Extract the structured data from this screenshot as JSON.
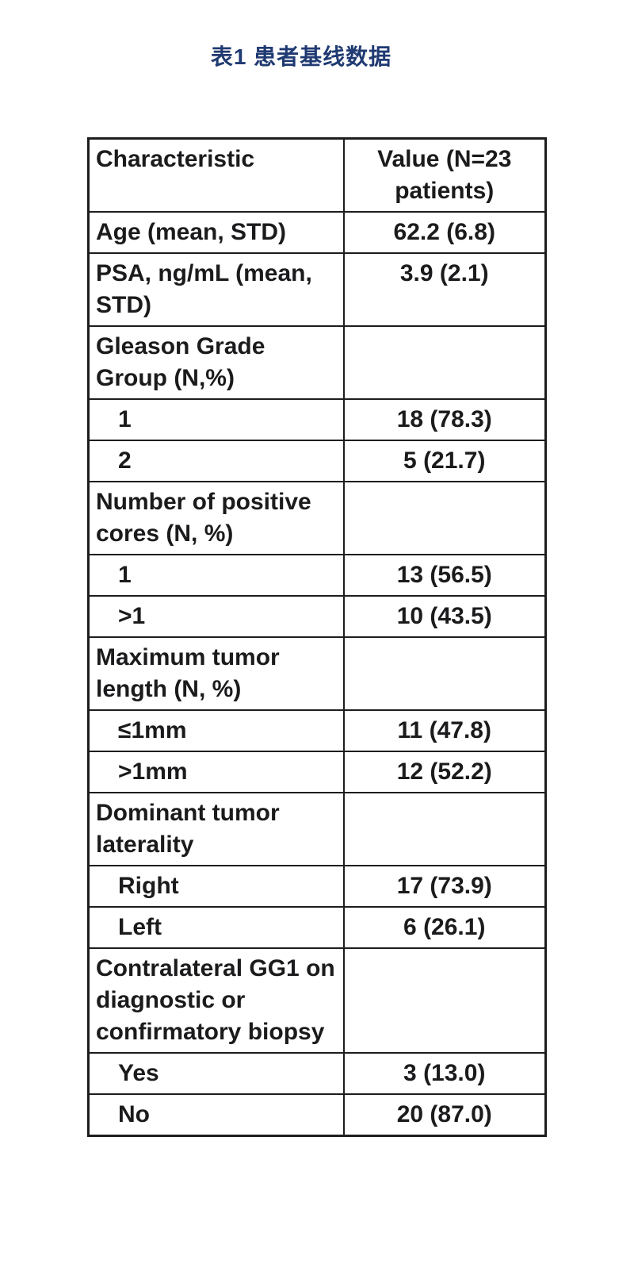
{
  "page": {
    "title": "表1  患者基线数据"
  },
  "table": {
    "header": {
      "characteristic": "Characteristic",
      "value": "Value (N=23 patients)"
    },
    "rows": [
      {
        "label": "Age (mean, STD)",
        "value": "62.2 (6.8)",
        "indent": false
      },
      {
        "label": "PSA, ng/mL (mean, STD)",
        "value": "3.9 (2.1)",
        "indent": false
      },
      {
        "label": "Gleason Grade Group (N,%)",
        "value": "",
        "indent": false
      },
      {
        "label": "1",
        "value": "18 (78.3)",
        "indent": true
      },
      {
        "label": "2",
        "value": "5 (21.7)",
        "indent": true
      },
      {
        "label": "Number of positive cores (N, %)",
        "value": "",
        "indent": false
      },
      {
        "label": "1",
        "value": "13 (56.5)",
        "indent": true
      },
      {
        "label": ">1",
        "value": "10 (43.5)",
        "indent": true
      },
      {
        "label": "Maximum tumor length (N, %)",
        "value": "",
        "indent": false
      },
      {
        "label": "≤1mm",
        "value": "11 (47.8)",
        "indent": true
      },
      {
        "label": ">1mm",
        "value": "12 (52.2)",
        "indent": true
      },
      {
        "label": "Dominant tumor laterality",
        "value": "",
        "indent": false
      },
      {
        "label": "Right",
        "value": "17 (73.9)",
        "indent": true
      },
      {
        "label": "Left",
        "value": "6 (26.1)",
        "indent": true
      },
      {
        "label": "Contralateral GG1 on diagnostic or confirmatory biopsy",
        "value": "",
        "indent": false
      },
      {
        "label": "Yes",
        "value": "3 (13.0)",
        "indent": true
      },
      {
        "label": "No",
        "value": "20 (87.0)",
        "indent": true
      }
    ],
    "colors": {
      "title_text": "#203a72",
      "body_text": "#1b1b1d",
      "border": "#1d1d1f",
      "background": "#ffffff"
    }
  }
}
